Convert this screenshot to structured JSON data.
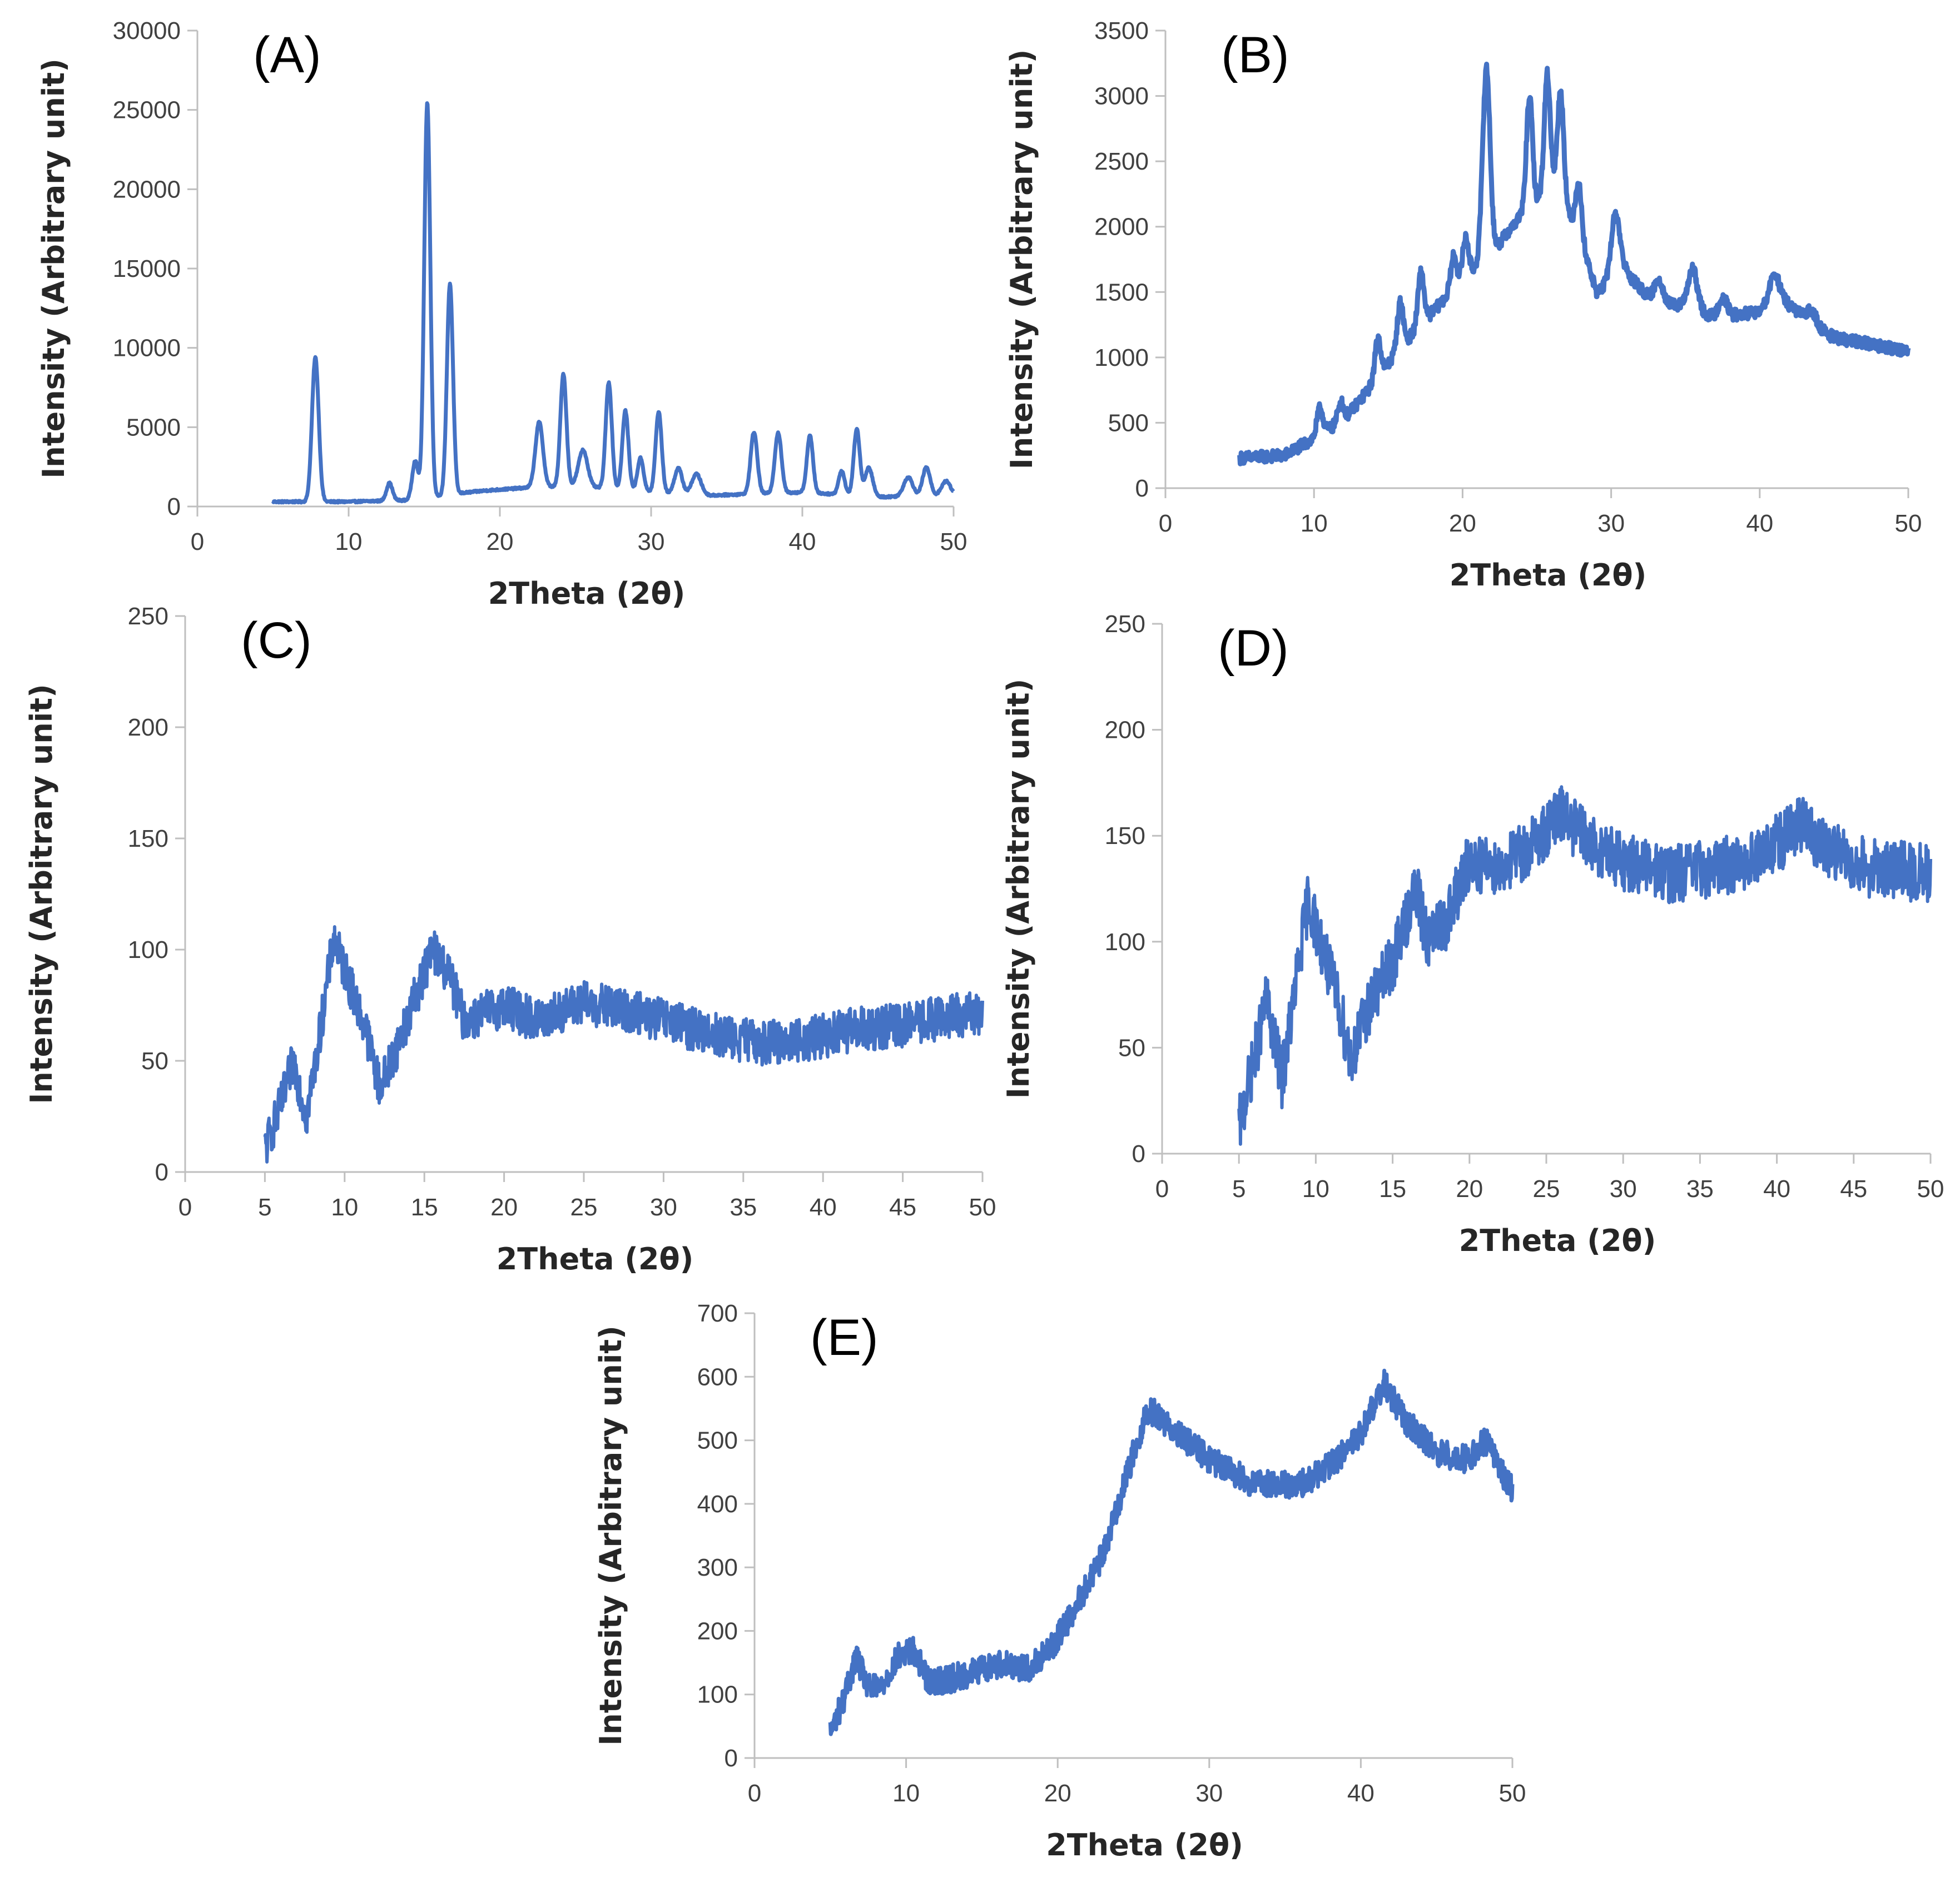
{
  "chart_data": [
    {
      "type": "line",
      "panel_label": "(A)",
      "xlabel": "2Theta (2θ)",
      "ylabel": "Intensity (Arbitrary unit)",
      "xlim": [
        0,
        50
      ],
      "ylim": [
        0,
        30000
      ],
      "xticks": [
        0,
        10,
        20,
        30,
        40,
        50
      ],
      "yticks": [
        0,
        5000,
        10000,
        15000,
        20000,
        25000,
        30000
      ],
      "grid": false,
      "legend": "none",
      "line_color": "#4472c4",
      "line_width": 7,
      "x_range": [
        5,
        50
      ],
      "baseline": [
        [
          5,
          300
        ],
        [
          10,
          300
        ],
        [
          14,
          400
        ],
        [
          17,
          800
        ],
        [
          19,
          1000
        ],
        [
          22,
          1200
        ],
        [
          25,
          1300
        ],
        [
          30,
          900
        ],
        [
          34,
          700
        ],
        [
          40,
          900
        ],
        [
          45,
          600
        ],
        [
          50,
          700
        ]
      ],
      "peaks": [
        {
          "x": 7.8,
          "y": 9100,
          "w": 0.22
        },
        {
          "x": 12.7,
          "y": 1100,
          "w": 0.2
        },
        {
          "x": 14.4,
          "y": 2400,
          "w": 0.2
        },
        {
          "x": 15.2,
          "y": 24900,
          "w": 0.2
        },
        {
          "x": 16.7,
          "y": 13300,
          "w": 0.2
        },
        {
          "x": 22.6,
          "y": 4100,
          "w": 0.25
        },
        {
          "x": 24.2,
          "y": 7100,
          "w": 0.2
        },
        {
          "x": 25.5,
          "y": 2300,
          "w": 0.3
        },
        {
          "x": 27.2,
          "y": 6700,
          "w": 0.2
        },
        {
          "x": 28.3,
          "y": 5000,
          "w": 0.2
        },
        {
          "x": 29.3,
          "y": 2100,
          "w": 0.2
        },
        {
          "x": 30.5,
          "y": 5100,
          "w": 0.2
        },
        {
          "x": 31.8,
          "y": 1600,
          "w": 0.25
        },
        {
          "x": 33,
          "y": 1300,
          "w": 0.3
        },
        {
          "x": 36.8,
          "y": 3900,
          "w": 0.22
        },
        {
          "x": 38.4,
          "y": 3800,
          "w": 0.22
        },
        {
          "x": 40.5,
          "y": 3600,
          "w": 0.2
        },
        {
          "x": 42.6,
          "y": 1500,
          "w": 0.2
        },
        {
          "x": 43.6,
          "y": 4200,
          "w": 0.2
        },
        {
          "x": 44.4,
          "y": 1800,
          "w": 0.25
        },
        {
          "x": 47,
          "y": 1200,
          "w": 0.3
        },
        {
          "x": 48.2,
          "y": 1800,
          "w": 0.25
        },
        {
          "x": 49.5,
          "y": 900,
          "w": 0.3
        }
      ],
      "noise_amplitude": 60
    },
    {
      "type": "line",
      "panel_label": "(B)",
      "xlabel": "2Theta (2θ)",
      "ylabel": "Intensity (Arbitrary unit)",
      "xlim": [
        0,
        50
      ],
      "ylim": [
        0,
        3500
      ],
      "xticks": [
        0,
        10,
        20,
        30,
        40,
        50
      ],
      "yticks": [
        0,
        500,
        1000,
        1500,
        2000,
        2500,
        3000,
        3500
      ],
      "grid": false,
      "legend": "none",
      "line_color": "#4472c4",
      "line_width": 9,
      "x_range": [
        5,
        50
      ],
      "baseline": [
        [
          5,
          230
        ],
        [
          8,
          250
        ],
        [
          10,
          380
        ],
        [
          12,
          520
        ],
        [
          14,
          800
        ],
        [
          16,
          1100
        ],
        [
          18,
          1350
        ],
        [
          20,
          1600
        ],
        [
          22,
          1800
        ],
        [
          24,
          2100
        ],
        [
          26,
          2300
        ],
        [
          28,
          1900
        ],
        [
          29,
          1500
        ],
        [
          31,
          1650
        ],
        [
          33,
          1400
        ],
        [
          35,
          1400
        ],
        [
          37,
          1300
        ],
        [
          40,
          1350
        ],
        [
          41,
          1500
        ],
        [
          43,
          1300
        ],
        [
          45,
          1150
        ],
        [
          50,
          1050
        ]
      ],
      "peaks": [
        {
          "x": 10.4,
          "y": 200,
          "w": 0.2
        },
        {
          "x": 11.8,
          "y": 150,
          "w": 0.2
        },
        {
          "x": 14.3,
          "y": 300,
          "w": 0.2
        },
        {
          "x": 15.8,
          "y": 350,
          "w": 0.2
        },
        {
          "x": 17.2,
          "y": 400,
          "w": 0.2
        },
        {
          "x": 19.4,
          "y": 250,
          "w": 0.2
        },
        {
          "x": 20.2,
          "y": 300,
          "w": 0.2
        },
        {
          "x": 21.6,
          "y": 1450,
          "w": 0.25
        },
        {
          "x": 24.5,
          "y": 850,
          "w": 0.2
        },
        {
          "x": 25.7,
          "y": 900,
          "w": 0.2
        },
        {
          "x": 26.6,
          "y": 850,
          "w": 0.22
        },
        {
          "x": 27.8,
          "y": 400,
          "w": 0.2
        },
        {
          "x": 30.3,
          "y": 500,
          "w": 0.3
        },
        {
          "x": 33.2,
          "y": 200,
          "w": 0.3
        },
        {
          "x": 35.5,
          "y": 300,
          "w": 0.3
        },
        {
          "x": 37.5,
          "y": 150,
          "w": 0.3
        },
        {
          "x": 41,
          "y": 150,
          "w": 0.3
        },
        {
          "x": 43.5,
          "y": 100,
          "w": 0.3
        }
      ],
      "noise_amplitude": 45
    },
    {
      "type": "line",
      "panel_label": "(C)",
      "xlabel": "2Theta (2θ)",
      "ylabel": "Intensity (Arbitrary unit)",
      "xlim": [
        0,
        50
      ],
      "ylim": [
        0,
        250
      ],
      "xticks": [
        0,
        5,
        10,
        15,
        20,
        25,
        30,
        35,
        40,
        45,
        50
      ],
      "yticks": [
        0,
        50,
        100,
        150,
        200,
        250
      ],
      "grid": false,
      "legend": "none",
      "line_color": "#4472c4",
      "line_width": 6,
      "x_range": [
        5,
        50
      ],
      "baseline": [
        [
          5,
          10
        ],
        [
          6,
          30
        ],
        [
          6.8,
          50
        ],
        [
          7.6,
          25
        ],
        [
          8.3,
          55
        ],
        [
          9.3,
          105
        ],
        [
          10.3,
          85
        ],
        [
          11.3,
          65
        ],
        [
          12.2,
          38
        ],
        [
          13.5,
          60
        ],
        [
          15.5,
          100
        ],
        [
          16.5,
          90
        ],
        [
          17.5,
          68
        ],
        [
          20,
          75
        ],
        [
          22,
          68
        ],
        [
          25,
          76
        ],
        [
          28,
          72
        ],
        [
          30,
          68
        ],
        [
          33,
          62
        ],
        [
          36,
          58
        ],
        [
          39,
          60
        ],
        [
          42,
          64
        ],
        [
          45,
          66
        ],
        [
          48,
          70
        ],
        [
          50,
          72
        ]
      ],
      "peaks": [],
      "noise_amplitude": 10
    },
    {
      "type": "line",
      "panel_label": "(D)",
      "xlabel": "2Theta (2θ)",
      "ylabel": "Intensity (Arbitrary unit)",
      "xlim": [
        0,
        50
      ],
      "ylim": [
        0,
        250
      ],
      "xticks": [
        0,
        5,
        10,
        15,
        20,
        25,
        30,
        35,
        40,
        45,
        50
      ],
      "yticks": [
        0,
        50,
        100,
        150,
        200,
        250
      ],
      "grid": false,
      "legend": "none",
      "line_color": "#4472c4",
      "line_width": 6,
      "x_range": [
        5,
        50
      ],
      "baseline": [
        [
          5,
          12
        ],
        [
          6,
          45
        ],
        [
          6.8,
          72
        ],
        [
          7.8,
          35
        ],
        [
          8.6,
          75
        ],
        [
          9.5,
          120
        ],
        [
          10.5,
          95
        ],
        [
          11.5,
          70
        ],
        [
          12.3,
          45
        ],
        [
          13.5,
          70
        ],
        [
          15,
          90
        ],
        [
          16.5,
          125
        ],
        [
          17.3,
          100
        ],
        [
          18.5,
          110
        ],
        [
          20,
          138
        ],
        [
          22,
          135
        ],
        [
          24,
          145
        ],
        [
          26,
          160
        ],
        [
          28,
          145
        ],
        [
          30,
          138
        ],
        [
          33,
          132
        ],
        [
          36,
          135
        ],
        [
          39,
          140
        ],
        [
          41.5,
          155
        ],
        [
          43,
          145
        ],
        [
          46,
          135
        ],
        [
          50,
          132
        ]
      ],
      "peaks": [],
      "noise_amplitude": 14
    },
    {
      "type": "line",
      "panel_label": "(E)",
      "xlabel": "2Theta (2θ)",
      "ylabel": "Intensity (Arbitrary unit)",
      "xlim": [
        0,
        50
      ],
      "ylim": [
        0,
        700
      ],
      "xticks": [
        0,
        10,
        20,
        30,
        40,
        50
      ],
      "yticks": [
        0,
        100,
        200,
        300,
        400,
        500,
        600,
        700
      ],
      "grid": false,
      "legend": "none",
      "line_color": "#4472c4",
      "line_width": 7,
      "x_range": [
        5,
        50
      ],
      "baseline": [
        [
          5,
          40
        ],
        [
          6,
          100
        ],
        [
          6.7,
          160
        ],
        [
          7.5,
          110
        ],
        [
          8.3,
          110
        ],
        [
          9.5,
          160
        ],
        [
          10.5,
          170
        ],
        [
          11.5,
          120
        ],
        [
          13,
          125
        ],
        [
          15,
          140
        ],
        [
          16.5,
          150
        ],
        [
          18,
          140
        ],
        [
          19.5,
          170
        ],
        [
          21,
          230
        ],
        [
          23,
          320
        ],
        [
          25,
          480
        ],
        [
          26,
          550
        ],
        [
          27.5,
          520
        ],
        [
          30,
          470
        ],
        [
          33,
          430
        ],
        [
          36,
          430
        ],
        [
          38,
          460
        ],
        [
          40,
          510
        ],
        [
          41.5,
          590
        ],
        [
          43,
          530
        ],
        [
          45,
          480
        ],
        [
          47,
          470
        ],
        [
          48.2,
          500
        ],
        [
          50,
          420
        ]
      ],
      "peaks": [],
      "noise_amplitude": 22
    }
  ]
}
